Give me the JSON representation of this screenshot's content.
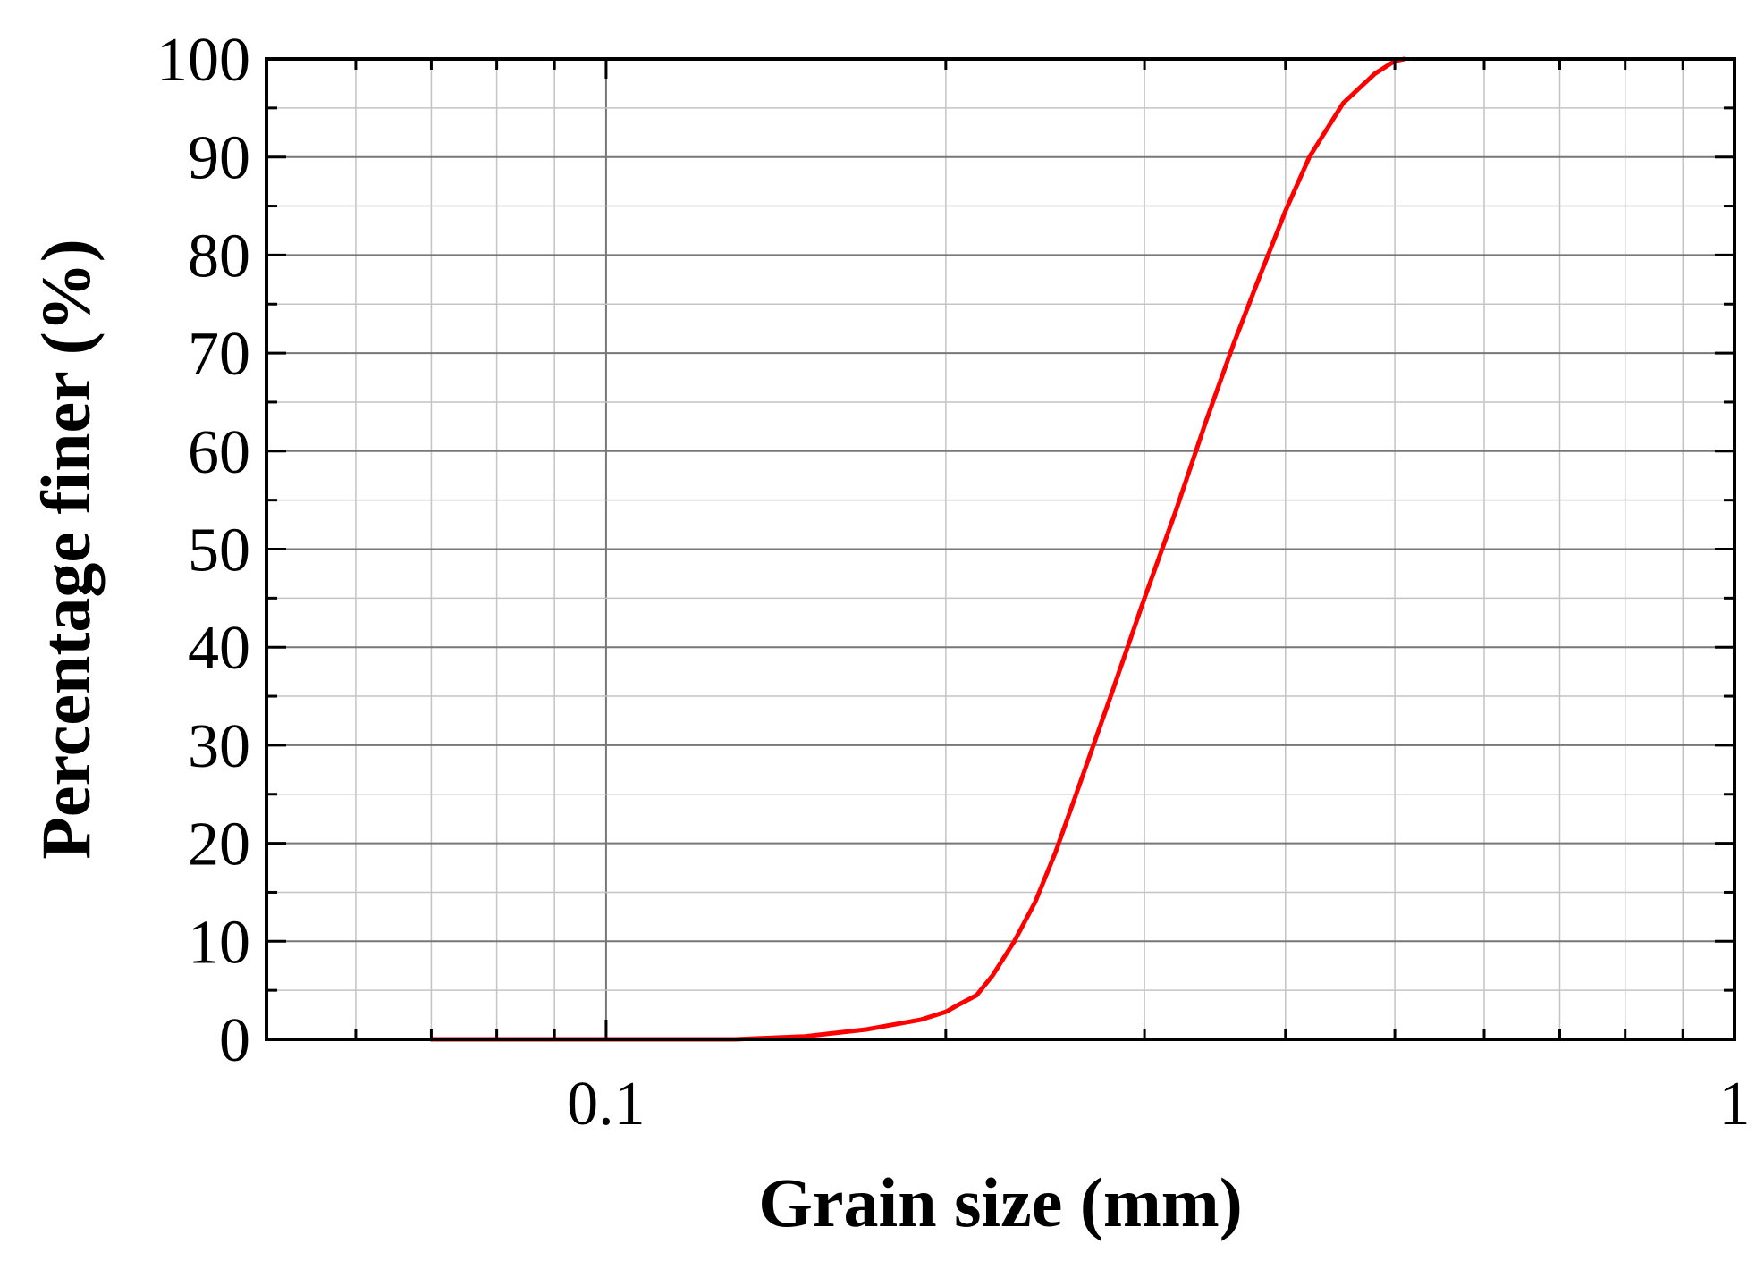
{
  "chart_data": {
    "type": "line",
    "title": "",
    "xlabel": "Grain size (mm)",
    "ylabel": "Percentage finer (%)",
    "xscale": "log",
    "xlim": [
      0.05,
      1
    ],
    "ylim": [
      0,
      100
    ],
    "grid": true,
    "legend": "none",
    "x_tick_labels": [
      {
        "value": 0.1,
        "label": "0.1"
      },
      {
        "value": 1,
        "label": "1"
      }
    ],
    "y_tick_labels": [
      {
        "value": 0,
        "label": "0"
      },
      {
        "value": 10,
        "label": "10"
      },
      {
        "value": 20,
        "label": "20"
      },
      {
        "value": 30,
        "label": "30"
      },
      {
        "value": 40,
        "label": "40"
      },
      {
        "value": 50,
        "label": "50"
      },
      {
        "value": 60,
        "label": "60"
      },
      {
        "value": 70,
        "label": "70"
      },
      {
        "value": 80,
        "label": "80"
      },
      {
        "value": 90,
        "label": "90"
      },
      {
        "value": 100,
        "label": "100"
      }
    ],
    "series": [
      {
        "color": "#ff0000",
        "x": [
          0.07,
          0.1,
          0.13,
          0.15,
          0.17,
          0.19,
          0.2,
          0.205,
          0.213,
          0.22,
          0.23,
          0.24,
          0.25,
          0.26,
          0.28,
          0.3,
          0.32,
          0.34,
          0.36,
          0.38,
          0.4,
          0.42,
          0.45,
          0.48,
          0.5,
          0.51
        ],
        "values": [
          0,
          0,
          0,
          0.3,
          1,
          2,
          2.8,
          3.5,
          4.5,
          6.5,
          10,
          14,
          19,
          24.5,
          35,
          45,
          54,
          63,
          71,
          78,
          84.5,
          90,
          95.5,
          98.5,
          99.8,
          100
        ]
      }
    ]
  }
}
